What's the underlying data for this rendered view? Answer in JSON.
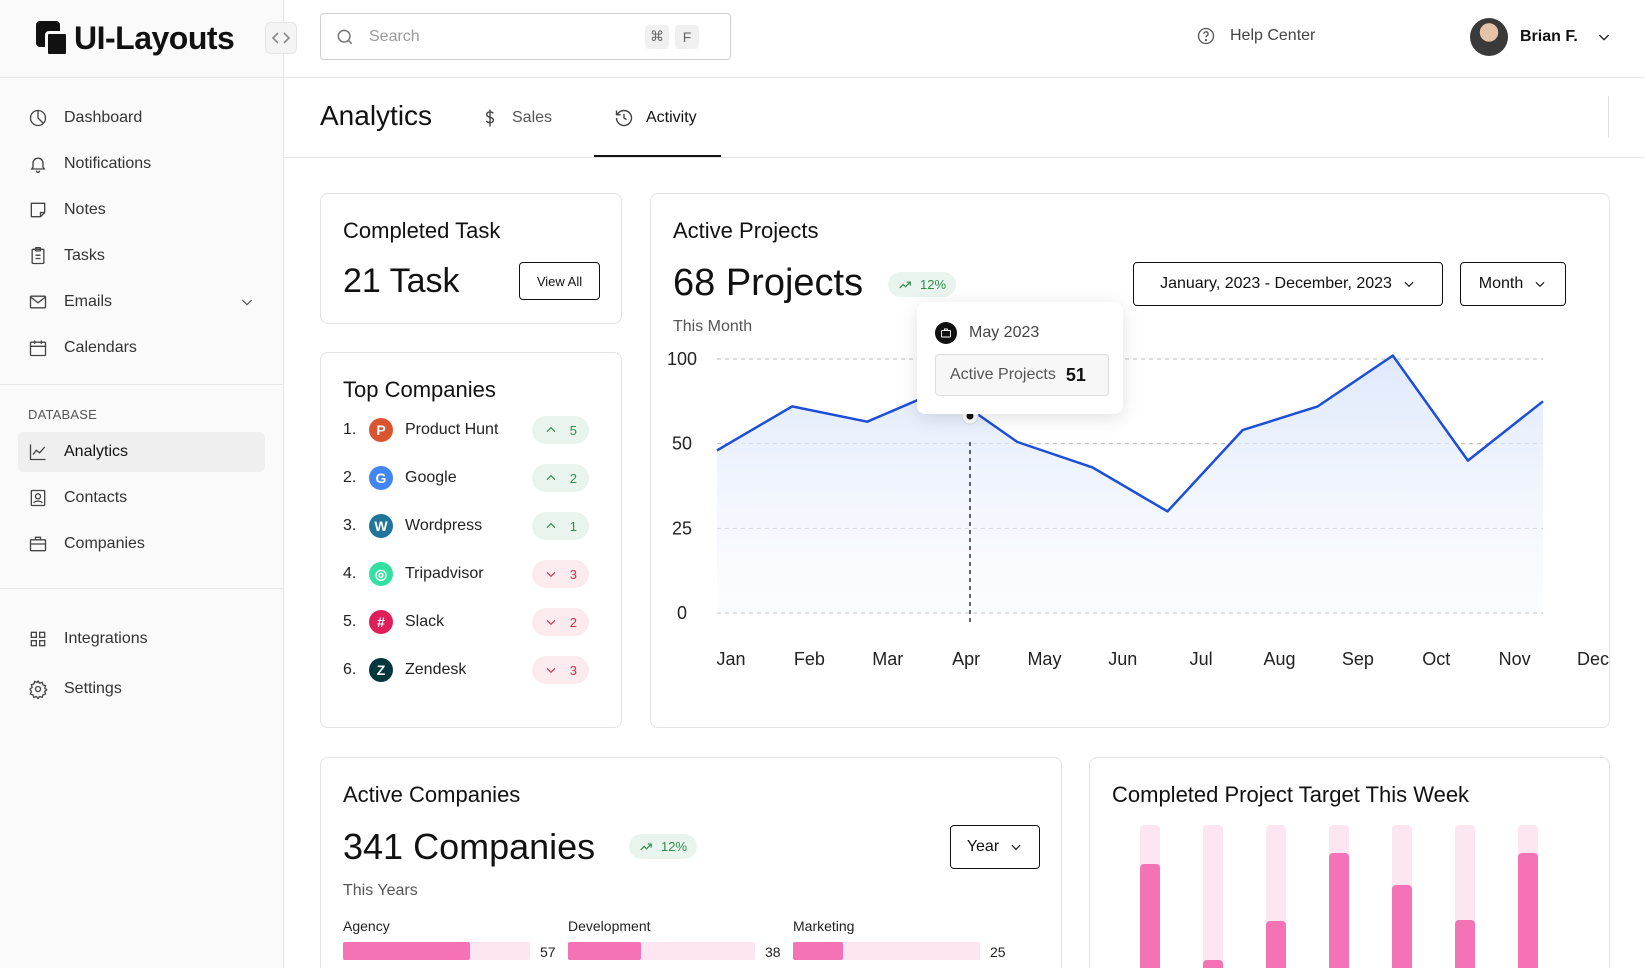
{
  "app": {
    "name": "UI-Layouts"
  },
  "sidebar": {
    "main_items": [
      {
        "label": "Dashboard",
        "icon": "dashboard-icon"
      },
      {
        "label": "Notifications",
        "icon": "bell-icon"
      },
      {
        "label": "Notes",
        "icon": "note-icon"
      },
      {
        "label": "Tasks",
        "icon": "clipboard-icon"
      },
      {
        "label": "Emails",
        "icon": "mail-icon"
      },
      {
        "label": "Calendars",
        "icon": "calendar-icon"
      }
    ],
    "database_label": "DATABASE",
    "database_items": [
      {
        "label": "Analytics",
        "icon": "chart-line-icon",
        "active": true
      },
      {
        "label": "Contacts",
        "icon": "contact-icon"
      },
      {
        "label": "Companies",
        "icon": "briefcase-icon"
      }
    ],
    "bottom_items": [
      {
        "label": "Integrations",
        "icon": "grid-icon"
      },
      {
        "label": "Settings",
        "icon": "gear-icon"
      }
    ]
  },
  "topbar": {
    "search_placeholder": "Search",
    "shortcut_keys": [
      "⌘",
      "F"
    ],
    "help_label": "Help Center",
    "user_name": "Brian F."
  },
  "page": {
    "title": "Analytics",
    "tabs": [
      {
        "label": "Sales",
        "icon": "dollar-icon"
      },
      {
        "label": "Activity",
        "icon": "history-icon",
        "active": true
      }
    ]
  },
  "completed_task": {
    "title": "Completed Task",
    "value": "21 Task",
    "button": "View All"
  },
  "top_companies": {
    "title": "Top Companies",
    "items": [
      {
        "rank": "1.",
        "name": "Product Hunt",
        "direction": "up",
        "change": "5",
        "logo_color": "#da552f",
        "logo_char": "P"
      },
      {
        "rank": "2.",
        "name": "Google",
        "direction": "up",
        "change": "2",
        "logo_color": "#4285f4",
        "logo_char": "G"
      },
      {
        "rank": "3.",
        "name": "Wordpress",
        "direction": "up",
        "change": "1",
        "logo_color": "#21759b",
        "logo_char": "W"
      },
      {
        "rank": "4.",
        "name": "Tripadvisor",
        "direction": "down",
        "change": "3",
        "logo_color": "#34e0a1",
        "logo_char": "◎"
      },
      {
        "rank": "5.",
        "name": "Slack",
        "direction": "down",
        "change": "2",
        "logo_color": "#e01e5a",
        "logo_char": "#"
      },
      {
        "rank": "6.",
        "name": "Zendesk",
        "direction": "down",
        "change": "3",
        "logo_color": "#03363d",
        "logo_char": "Z"
      }
    ]
  },
  "active_projects": {
    "title": "Active Projects",
    "value": "68 Projects",
    "change": "12%",
    "subtitle": "This Month",
    "date_range": "January, 2023 - December, 2023",
    "period": "Month",
    "tooltip": {
      "month": "May 2023",
      "label": "Active Projects",
      "value": "51"
    }
  },
  "chart_data": {
    "type": "area",
    "x": [
      "Jan",
      "Feb",
      "Mar",
      "Apr",
      "May",
      "Jun",
      "Jul",
      "Aug",
      "Sep",
      "Oct",
      "Nov",
      "Dec"
    ],
    "series": [
      {
        "values": [
          48,
          72,
          63,
          82,
          51,
          43,
          30,
          58,
          72,
          102,
          45,
          75
        ]
      }
    ],
    "y_ticks": [
      0,
      25,
      50,
      100
    ],
    "ylim": [
      0,
      100
    ],
    "grid": true,
    "highlight_month": "May",
    "line_color": "#1d4ed8"
  },
  "active_companies": {
    "title": "Active Companies",
    "value": "341 Companies",
    "change": "12%",
    "subtitle": "This Years",
    "period": "Year",
    "departments": [
      {
        "label": "Agency",
        "value": "57",
        "fill": 0.68
      },
      {
        "label": "Development",
        "value": "38",
        "fill": 0.39
      },
      {
        "label": "Marketing",
        "value": "25",
        "fill": 0.27
      }
    ]
  },
  "completed_target": {
    "title": "Completed Project Target This Week",
    "fills": [
      0.76,
      0.17,
      0.41,
      0.83,
      0.63,
      0.42,
      0.83
    ]
  },
  "colors": {
    "accent_pink": "#f472b6",
    "accent_blue": "#1d4ed8",
    "positive": "#2f8c4d",
    "negative": "#c0394e"
  }
}
